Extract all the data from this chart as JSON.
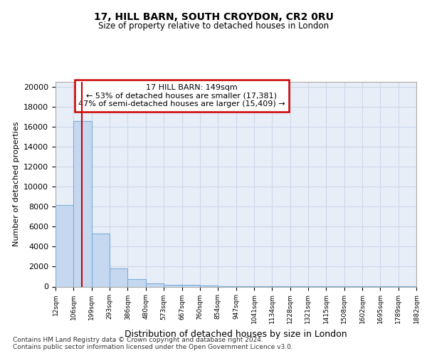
{
  "title1": "17, HILL BARN, SOUTH CROYDON, CR2 0RU",
  "title2": "Size of property relative to detached houses in London",
  "xlabel": "Distribution of detached houses by size in London",
  "ylabel": "Number of detached properties",
  "annotation_line1": "17 HILL BARN: 149sqm",
  "annotation_line2": "← 53% of detached houses are smaller (17,381)",
  "annotation_line3": "47% of semi-detached houses are larger (15,409) →",
  "footer1": "Contains HM Land Registry data © Crown copyright and database right 2024.",
  "footer2": "Contains public sector information licensed under the Open Government Licence v3.0.",
  "property_size": 149,
  "bar_edges": [
    12,
    106,
    199,
    293,
    386,
    480,
    573,
    667,
    760,
    854,
    947,
    1041,
    1134,
    1228,
    1321,
    1415,
    1508,
    1602,
    1695,
    1789,
    1882
  ],
  "bar_heights": [
    8200,
    16600,
    5300,
    1800,
    750,
    300,
    200,
    200,
    100,
    60,
    40,
    25,
    15,
    12,
    8,
    6,
    4,
    3,
    2,
    1
  ],
  "bar_color": "#c5d8f0",
  "bar_edge_color": "#7bafd4",
  "redline_color": "#cc0000",
  "annotation_box_color": "#cc0000",
  "background_color": "#ffffff",
  "grid_color": "#ccd8eb",
  "ylim": [
    0,
    20500
  ],
  "yticks": [
    0,
    2000,
    4000,
    6000,
    8000,
    10000,
    12000,
    14000,
    16000,
    18000,
    20000
  ]
}
